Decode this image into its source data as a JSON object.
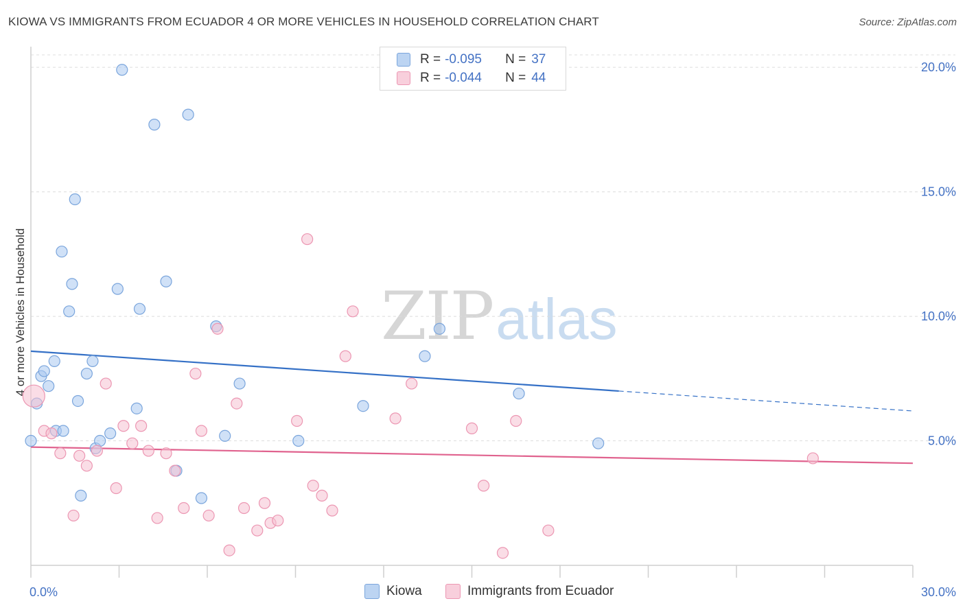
{
  "chart_data": {
    "type": "scatter",
    "title": "KIOWA VS IMMIGRANTS FROM ECUADOR 4 OR MORE VEHICLES IN HOUSEHOLD CORRELATION CHART",
    "source": "Source: ZipAtlas.com",
    "xlabel": "",
    "ylabel": "4 or more Vehicles in Household",
    "xlim": [
      0,
      30
    ],
    "ylim": [
      0,
      20.5
    ],
    "x_tick_labels": [
      "0.0%",
      "30.0%"
    ],
    "y_ticks": [
      5,
      10,
      15,
      20
    ],
    "y_tick_labels": [
      "5.0%",
      "10.0%",
      "15.0%",
      "20.0%"
    ],
    "grid": true,
    "legend_position": "top-center",
    "watermark": {
      "zip": "ZIP",
      "atlas": "atlas"
    },
    "legend": {
      "r_label": "R =",
      "n_label": "N =",
      "series": [
        {
          "r": "-0.095",
          "n": "37"
        },
        {
          "r": "-0.044",
          "n": "44"
        }
      ]
    },
    "series": [
      {
        "name": "Kiowa",
        "color": "#a9c8f0",
        "stroke": "#7aa5dc",
        "line_color": "#3470c6",
        "trend": {
          "x_solid": [
            0,
            20
          ],
          "y_solid": [
            8.6,
            7.0
          ],
          "x_dash": [
            20,
            30
          ],
          "y_dash": [
            7.0,
            6.2
          ]
        },
        "points": [
          [
            0.0,
            5.0
          ],
          [
            0.2,
            6.5
          ],
          [
            0.35,
            7.6
          ],
          [
            0.45,
            7.8
          ],
          [
            0.6,
            7.2
          ],
          [
            0.8,
            8.2
          ],
          [
            0.85,
            5.4
          ],
          [
            1.1,
            5.4
          ],
          [
            1.05,
            12.6
          ],
          [
            1.3,
            10.2
          ],
          [
            1.4,
            11.3
          ],
          [
            1.5,
            14.7
          ],
          [
            1.6,
            6.6
          ],
          [
            1.7,
            2.8
          ],
          [
            1.9,
            7.7
          ],
          [
            2.1,
            8.2
          ],
          [
            2.2,
            4.7
          ],
          [
            2.35,
            5.0
          ],
          [
            2.7,
            5.3
          ],
          [
            2.95,
            11.1
          ],
          [
            3.1,
            19.9
          ],
          [
            3.6,
            6.3
          ],
          [
            3.7,
            10.3
          ],
          [
            4.2,
            17.7
          ],
          [
            4.6,
            11.4
          ],
          [
            4.95,
            3.8
          ],
          [
            5.35,
            18.1
          ],
          [
            5.8,
            2.7
          ],
          [
            6.3,
            9.6
          ],
          [
            6.6,
            5.2
          ],
          [
            7.1,
            7.3
          ],
          [
            9.1,
            5.0
          ],
          [
            11.3,
            6.4
          ],
          [
            13.4,
            8.4
          ],
          [
            13.9,
            9.5
          ],
          [
            16.6,
            6.9
          ],
          [
            19.3,
            4.9
          ]
        ]
      },
      {
        "name": "Immigrants from Ecuador",
        "color": "#f6c1d2",
        "stroke": "#ec96b2",
        "line_color": "#e0628e",
        "trend": {
          "x_solid": [
            0,
            30
          ],
          "y_solid": [
            4.75,
            4.1
          ]
        },
        "points": [
          [
            0.1,
            6.8
          ],
          [
            0.45,
            5.4
          ],
          [
            0.7,
            5.3
          ],
          [
            1.0,
            4.5
          ],
          [
            1.45,
            2.0
          ],
          [
            1.65,
            4.4
          ],
          [
            1.9,
            4.0
          ],
          [
            2.25,
            4.6
          ],
          [
            2.55,
            7.3
          ],
          [
            2.9,
            3.1
          ],
          [
            3.15,
            5.6
          ],
          [
            3.45,
            4.9
          ],
          [
            3.75,
            5.6
          ],
          [
            4.0,
            4.6
          ],
          [
            4.3,
            1.9
          ],
          [
            4.6,
            4.5
          ],
          [
            4.9,
            3.8
          ],
          [
            5.2,
            2.3
          ],
          [
            5.6,
            7.7
          ],
          [
            5.8,
            5.4
          ],
          [
            6.05,
            2.0
          ],
          [
            6.35,
            9.5
          ],
          [
            6.75,
            0.6
          ],
          [
            7.0,
            6.5
          ],
          [
            7.25,
            2.3
          ],
          [
            7.7,
            1.4
          ],
          [
            7.95,
            2.5
          ],
          [
            8.15,
            1.7
          ],
          [
            8.4,
            1.8
          ],
          [
            9.05,
            5.8
          ],
          [
            9.4,
            13.1
          ],
          [
            9.6,
            3.2
          ],
          [
            9.9,
            2.8
          ],
          [
            10.25,
            2.2
          ],
          [
            10.7,
            8.4
          ],
          [
            10.95,
            10.2
          ],
          [
            12.4,
            5.9
          ],
          [
            12.95,
            7.3
          ],
          [
            15.0,
            5.5
          ],
          [
            15.4,
            3.2
          ],
          [
            16.05,
            0.5
          ],
          [
            16.5,
            5.8
          ],
          [
            17.6,
            1.4
          ],
          [
            26.6,
            4.3
          ]
        ]
      }
    ]
  }
}
